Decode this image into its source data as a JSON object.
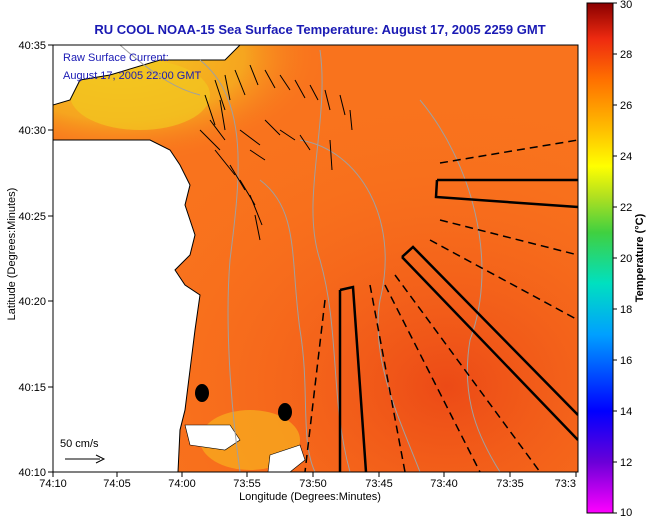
{
  "title": "RU COOL  NOAA-15  Sea Surface Temperature:  August 17, 2005 2259 GMT",
  "axes": {
    "xlabel": "Longitude (Degrees:Minutes)",
    "ylabel": "Latitude (Degrees:Minutes)",
    "x_ticks": [
      "74:10",
      "74:05",
      "74:00",
      "73:55",
      "73:50",
      "73:45",
      "73:40",
      "73:35",
      "73:3"
    ],
    "y_ticks": [
      "40:35",
      "40:30",
      "40:25",
      "40:20",
      "40:15",
      "40:10"
    ]
  },
  "annotation": {
    "line1": "Raw Surface Current:",
    "line2": "August 17, 2005 22:00 GMT"
  },
  "scale": {
    "label": "50 cm/s"
  },
  "colorbar": {
    "label": "Temperature (°C)",
    "ticks": [
      "30",
      "28",
      "26",
      "24",
      "22",
      "20",
      "18",
      "16",
      "14",
      "12",
      "10"
    ],
    "min": 10,
    "max": 30
  },
  "colors": {
    "title": "#1a1ab4",
    "ocean": "#f9731d",
    "warm_ocean": "#ee5318",
    "cool_water": "#f1c21d",
    "land": "#ffffff",
    "coastline": "#000000"
  }
}
